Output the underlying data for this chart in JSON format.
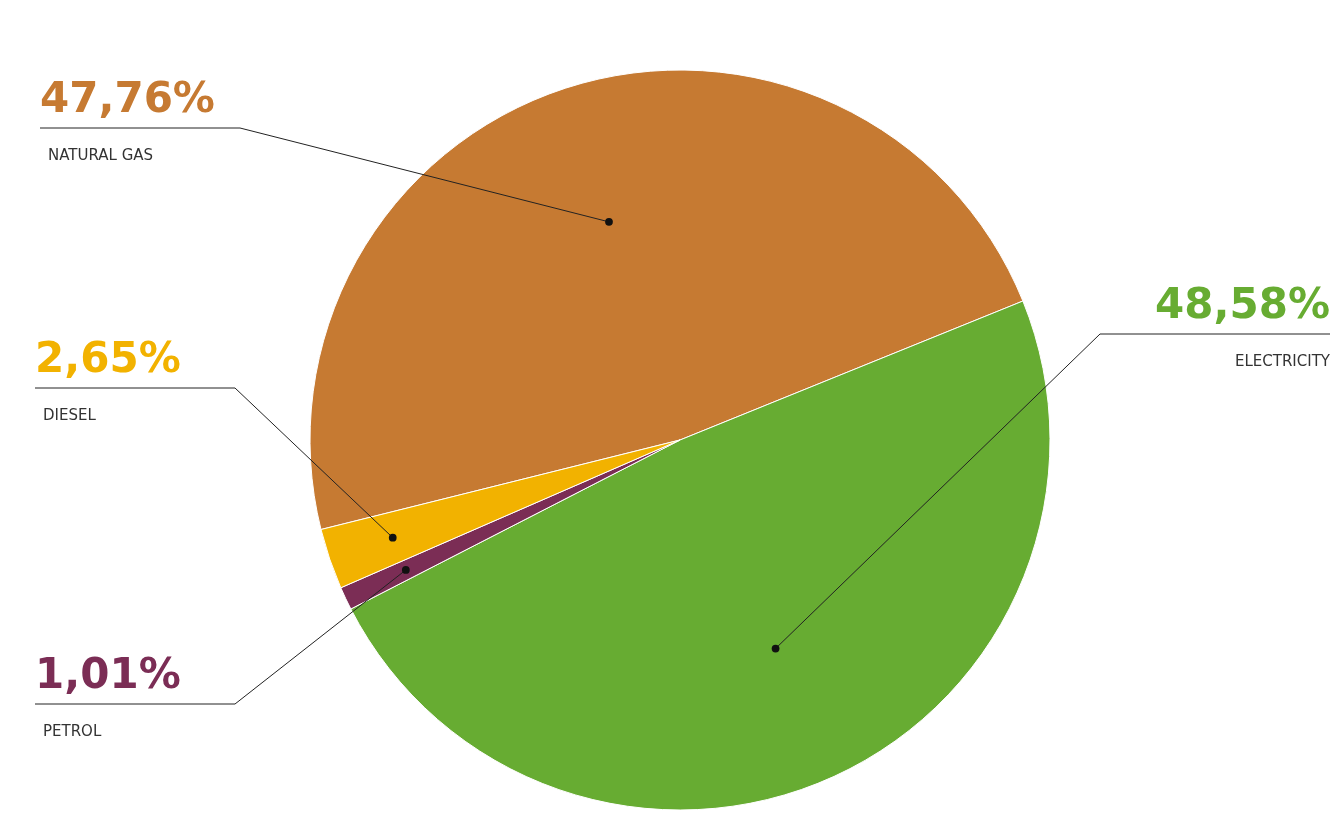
{
  "chart_data": {
    "type": "pie",
    "categories": [
      "NATURAL GAS",
      "ELECTRICITY",
      "PETROL",
      "DIESEL"
    ],
    "values": [
      47.76,
      48.58,
      1.01,
      2.65
    ],
    "colors": [
      "#c67a32",
      "#67ac32",
      "#7b2d55",
      "#f2b200"
    ],
    "value_labels": [
      "47,76%",
      "48,58%",
      "1,01%",
      "2,65%"
    ]
  }
}
